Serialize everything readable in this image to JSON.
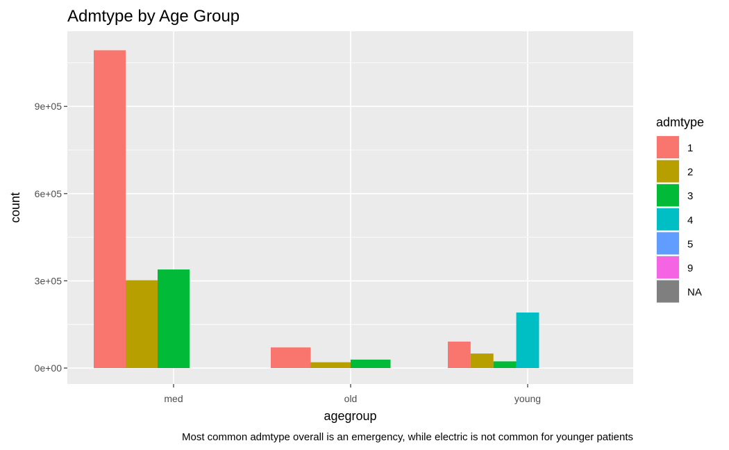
{
  "chart_data": {
    "type": "bar",
    "title": "Admtype by Age Group",
    "xlabel": "agegroup",
    "ylabel": "count",
    "caption": "Most common admtype overall is an emergency, while electric is not common for younger patients",
    "categories": [
      "med",
      "old",
      "young"
    ],
    "ylim": [
      0,
      1100000
    ],
    "yticks": [
      {
        "value": 0,
        "label": "0e+00"
      },
      {
        "value": 300000,
        "label": "3e+05"
      },
      {
        "value": 600000,
        "label": "6e+05"
      },
      {
        "value": 900000,
        "label": "9e+05"
      }
    ],
    "grid": true,
    "legend": {
      "title": "admtype",
      "placement": "right",
      "entries": [
        {
          "label": "1",
          "color": "#F8766D"
        },
        {
          "label": "2",
          "color": "#B79F00"
        },
        {
          "label": "3",
          "color": "#00BA38"
        },
        {
          "label": "4",
          "color": "#00BFC4"
        },
        {
          "label": "5",
          "color": "#619CFF"
        },
        {
          "label": "9",
          "color": "#F564E3"
        },
        {
          "label": "NA",
          "color": "#7F7F7F"
        }
      ]
    },
    "groups": [
      {
        "category": "med",
        "bars": [
          {
            "admtype": "1",
            "value": 1093000
          },
          {
            "admtype": "2",
            "value": 302000
          },
          {
            "admtype": "3",
            "value": 339000
          },
          {
            "admtype": "4",
            "value": 0
          },
          {
            "admtype": "NA",
            "value": 0
          }
        ]
      },
      {
        "category": "old",
        "bars": [
          {
            "admtype": "1",
            "value": 71000
          },
          {
            "admtype": "2",
            "value": 20000
          },
          {
            "admtype": "3",
            "value": 29000
          },
          {
            "admtype": "NA",
            "value": 0
          }
        ]
      },
      {
        "category": "young",
        "bars": [
          {
            "admtype": "1",
            "value": 91000
          },
          {
            "admtype": "2",
            "value": 50000
          },
          {
            "admtype": "3",
            "value": 23000
          },
          {
            "admtype": "4",
            "value": 191000
          },
          {
            "admtype": "5",
            "value": 0
          },
          {
            "admtype": "9",
            "value": 0
          },
          {
            "admtype": "NA",
            "value": 0
          }
        ]
      }
    ],
    "colors": {
      "panel_bg": "#EBEBEB",
      "grid_major": "#FFFFFF",
      "axis_text": "#4D4D4D",
      "text": "#000000"
    }
  }
}
